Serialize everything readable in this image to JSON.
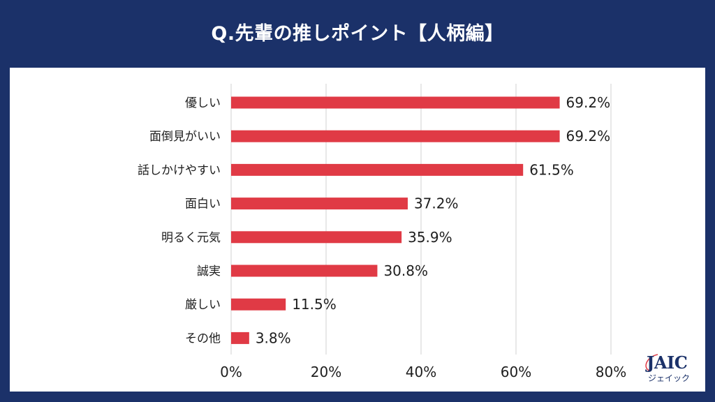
{
  "header": {
    "title": "Q.先輩の推しポイント【人柄編】"
  },
  "logo": {
    "main": "JAIC",
    "sub": "ジェイック"
  },
  "colors": {
    "bar": "#e03a45",
    "background": "#1b3169",
    "grid": "#d9d9d9"
  },
  "chart_data": {
    "type": "bar",
    "orientation": "horizontal",
    "title": "Q.先輩の推しポイント【人柄編】",
    "xlabel": "",
    "ylabel": "",
    "xlim": [
      0,
      80
    ],
    "grid": true,
    "categories": [
      "優しい",
      "面倒見がいい",
      "話しかけやすい",
      "面白い",
      "明るく元気",
      "誠実",
      "厳しい",
      "その他"
    ],
    "values": [
      69.2,
      69.2,
      61.5,
      37.2,
      35.9,
      30.8,
      11.5,
      3.8
    ],
    "value_labels": [
      "69.2%",
      "69.2%",
      "61.5%",
      "37.2%",
      "35.9%",
      "30.8%",
      "11.5%",
      "3.8%"
    ],
    "ticks": [
      0,
      20,
      40,
      60,
      80
    ],
    "tick_labels": [
      "0%",
      "20%",
      "40%",
      "60%",
      "80%"
    ]
  }
}
